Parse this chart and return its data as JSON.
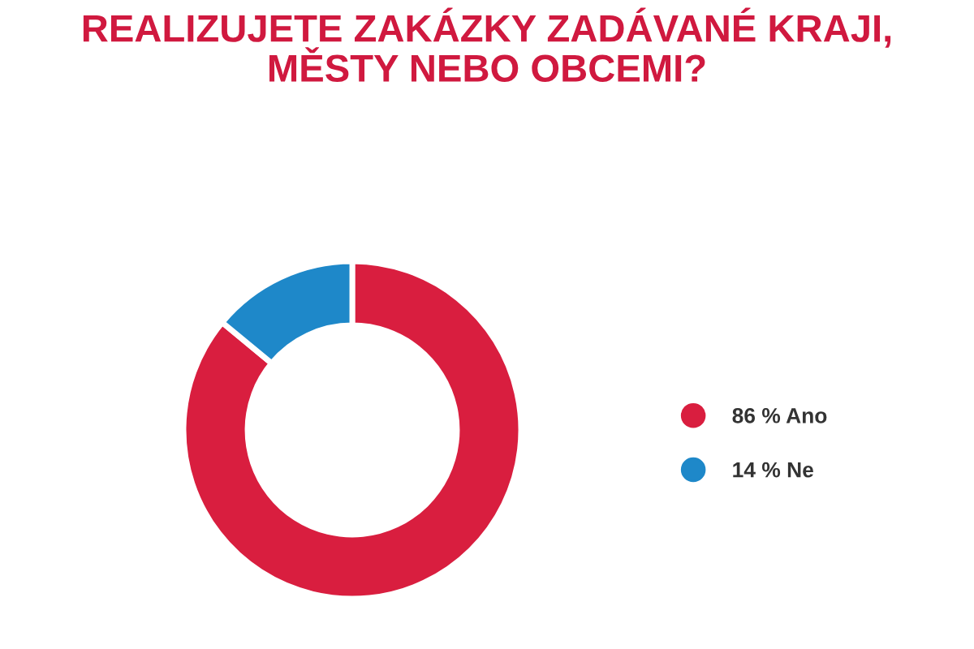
{
  "chart_data": {
    "type": "donut",
    "title": "REALIZUJETE ZAKÁZKY ZADÁVANÉ KRAJI,\nMĚSTY NEBO OBCEMI?",
    "categories": [
      "Ano",
      "Ne"
    ],
    "values": [
      86,
      14
    ],
    "colors": [
      "#d91e3f",
      "#1e88c9"
    ],
    "value_labels": [
      "86 %",
      "14 %"
    ],
    "legend": "right"
  }
}
